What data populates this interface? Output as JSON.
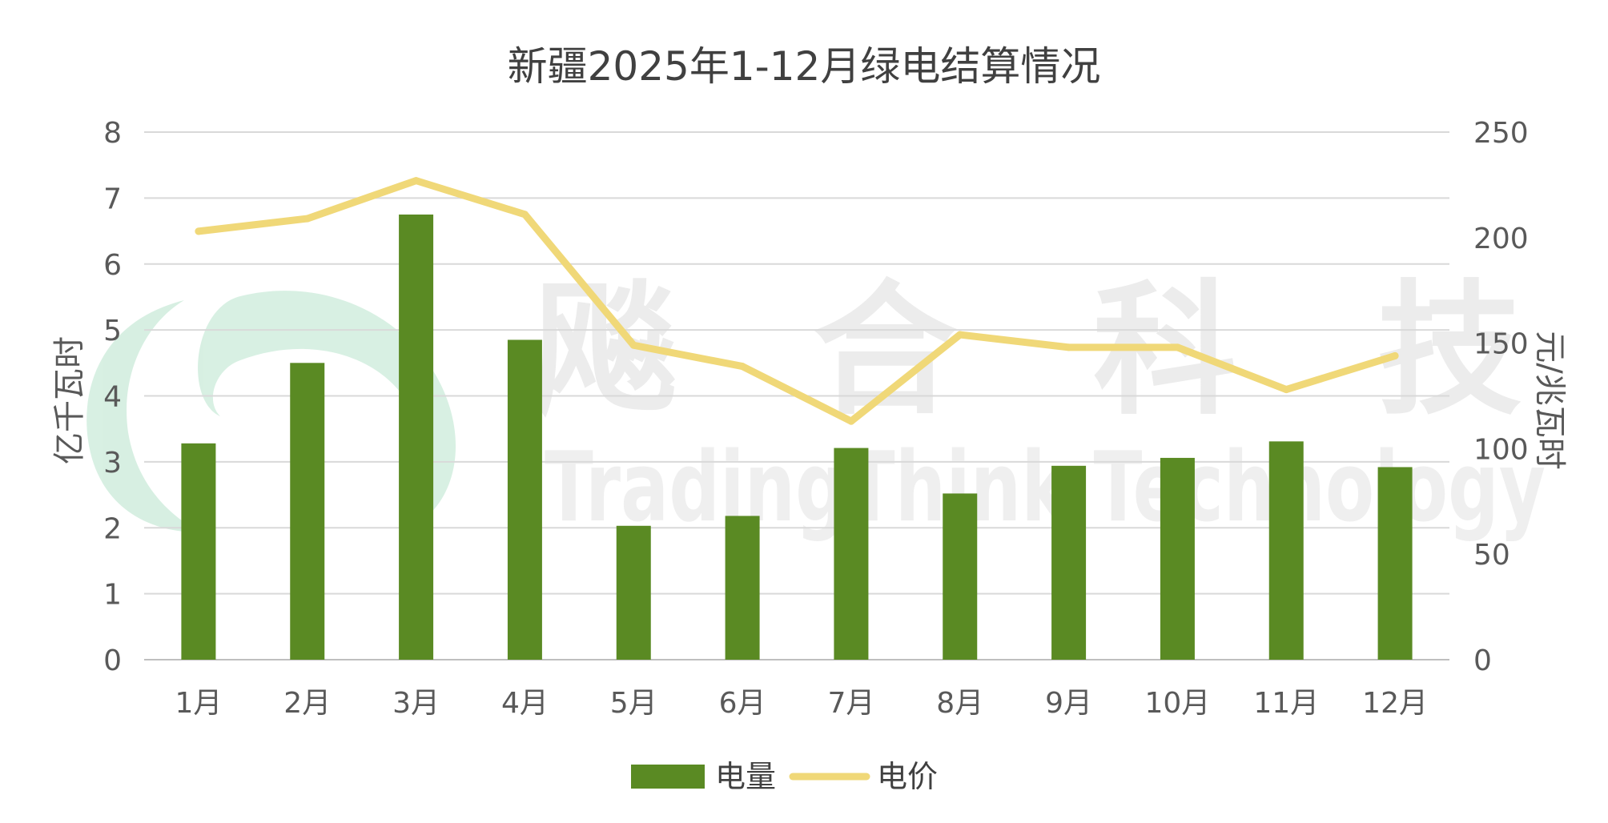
{
  "watermark": {
    "chars": [
      "飚",
      "合",
      "科",
      "技"
    ],
    "english": "TradingThink Technology",
    "logo_color": "#3cb371"
  },
  "chart_data": {
    "type": "bar",
    "title": "新疆2025年1-12月绿电结算情况",
    "categories": [
      "1月",
      "2月",
      "3月",
      "4月",
      "5月",
      "6月",
      "7月",
      "8月",
      "9月",
      "10月",
      "11月",
      "12月"
    ],
    "series": [
      {
        "name": "电量",
        "type": "bar",
        "axis": "left",
        "color": "#5a8a23",
        "values": [
          3.28,
          4.5,
          6.75,
          4.85,
          2.03,
          2.18,
          3.21,
          2.52,
          2.94,
          3.06,
          3.31,
          2.92
        ]
      },
      {
        "name": "电价",
        "type": "line",
        "axis": "right",
        "color": "#f0d878",
        "values": [
          203,
          209,
          227,
          211,
          149,
          139,
          113,
          154,
          148,
          148,
          128,
          144
        ]
      }
    ],
    "y_left": {
      "label": "亿千瓦时",
      "min": 0,
      "max": 8,
      "ticks": [
        "0",
        "1",
        "2",
        "3",
        "4",
        "5",
        "6",
        "7",
        "8"
      ]
    },
    "y_right": {
      "label": "元/兆瓦时",
      "min": 0,
      "max": 250,
      "ticks": [
        "0",
        "50",
        "100",
        "150",
        "200",
        "250"
      ]
    },
    "grid": true,
    "legend_position": "bottom"
  }
}
